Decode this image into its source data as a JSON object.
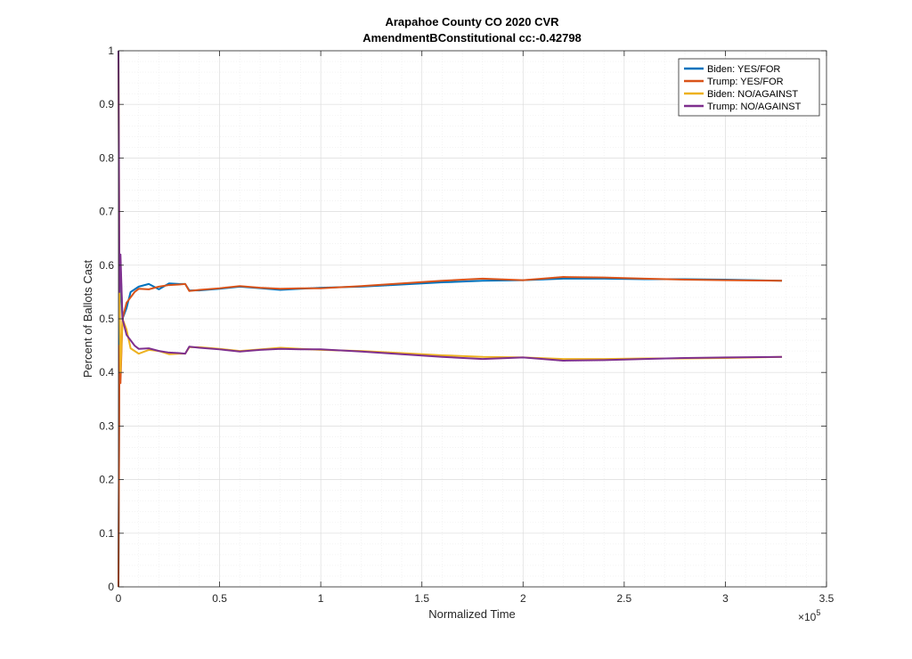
{
  "chart_data": {
    "type": "line",
    "title": "Arapahoe County CO 2020 CVR",
    "subtitle": "AmendmentBConstitutional cc:-0.42798",
    "xlabel": "Normalized Time",
    "ylabel": "Percent of Ballots Cast",
    "x_exponent_label": "×10",
    "x_exponent_power": "5",
    "xlim": [
      0,
      3.5
    ],
    "ylim": [
      0,
      1
    ],
    "x_ticks": [
      0,
      0.5,
      1,
      1.5,
      2,
      2.5,
      3,
      3.5
    ],
    "x_tick_labels": [
      "0",
      "0.5",
      "1",
      "1.5",
      "2",
      "2.5",
      "3",
      "3.5"
    ],
    "y_ticks": [
      0,
      0.1,
      0.2,
      0.3,
      0.4,
      0.5,
      0.6,
      0.7,
      0.8,
      0.9,
      1
    ],
    "y_tick_labels": [
      "0",
      "0.1",
      "0.2",
      "0.3",
      "0.4",
      "0.5",
      "0.6",
      "0.7",
      "0.8",
      "0.9",
      "1"
    ],
    "grid": true,
    "minor_grid": true,
    "legend_position": "top-right",
    "series": [
      {
        "name": "Biden: YES/FOR",
        "color": "#0072BD",
        "points": [
          [
            0,
            0.0
          ],
          [
            0.005,
            0.44
          ],
          [
            0.01,
            0.6
          ],
          [
            0.02,
            0.5
          ],
          [
            0.04,
            0.52
          ],
          [
            0.06,
            0.55
          ],
          [
            0.1,
            0.56
          ],
          [
            0.15,
            0.565
          ],
          [
            0.2,
            0.555
          ],
          [
            0.25,
            0.566
          ],
          [
            0.3,
            0.565
          ],
          [
            0.33,
            0.565
          ],
          [
            0.35,
            0.553
          ],
          [
            0.4,
            0.553
          ],
          [
            0.5,
            0.556
          ],
          [
            0.6,
            0.56
          ],
          [
            0.7,
            0.557
          ],
          [
            0.8,
            0.554
          ],
          [
            0.9,
            0.556
          ],
          [
            1.0,
            0.558
          ],
          [
            1.2,
            0.56
          ],
          [
            1.4,
            0.564
          ],
          [
            1.6,
            0.568
          ],
          [
            1.8,
            0.571
          ],
          [
            2.0,
            0.572
          ],
          [
            2.2,
            0.575
          ],
          [
            2.4,
            0.575
          ],
          [
            2.6,
            0.574
          ],
          [
            2.8,
            0.574
          ],
          [
            3.0,
            0.573
          ],
          [
            3.28,
            0.571
          ]
        ]
      },
      {
        "name": "Trump: YES/FOR",
        "color": "#D95319",
        "points": [
          [
            0,
            0.0
          ],
          [
            0.005,
            0.45
          ],
          [
            0.01,
            0.38
          ],
          [
            0.02,
            0.5
          ],
          [
            0.04,
            0.53
          ],
          [
            0.08,
            0.55
          ],
          [
            0.1,
            0.556
          ],
          [
            0.15,
            0.555
          ],
          [
            0.2,
            0.56
          ],
          [
            0.25,
            0.563
          ],
          [
            0.3,
            0.564
          ],
          [
            0.33,
            0.565
          ],
          [
            0.35,
            0.552
          ],
          [
            0.4,
            0.554
          ],
          [
            0.5,
            0.557
          ],
          [
            0.6,
            0.561
          ],
          [
            0.7,
            0.558
          ],
          [
            0.8,
            0.556
          ],
          [
            0.9,
            0.557
          ],
          [
            1.0,
            0.557
          ],
          [
            1.2,
            0.561
          ],
          [
            1.4,
            0.566
          ],
          [
            1.6,
            0.571
          ],
          [
            1.8,
            0.575
          ],
          [
            2.0,
            0.572
          ],
          [
            2.2,
            0.578
          ],
          [
            2.4,
            0.577
          ],
          [
            2.6,
            0.575
          ],
          [
            2.8,
            0.573
          ],
          [
            3.0,
            0.572
          ],
          [
            3.28,
            0.571
          ]
        ]
      },
      {
        "name": "Biden: NO/AGAINST",
        "color": "#EDB120",
        "points": [
          [
            0,
            1.0
          ],
          [
            0.005,
            0.56
          ],
          [
            0.01,
            0.4
          ],
          [
            0.02,
            0.5
          ],
          [
            0.04,
            0.48
          ],
          [
            0.06,
            0.445
          ],
          [
            0.1,
            0.435
          ],
          [
            0.15,
            0.442
          ],
          [
            0.2,
            0.44
          ],
          [
            0.25,
            0.434
          ],
          [
            0.3,
            0.435
          ],
          [
            0.33,
            0.435
          ],
          [
            0.35,
            0.447
          ],
          [
            0.4,
            0.447
          ],
          [
            0.5,
            0.444
          ],
          [
            0.6,
            0.44
          ],
          [
            0.7,
            0.443
          ],
          [
            0.8,
            0.446
          ],
          [
            0.9,
            0.444
          ],
          [
            1.0,
            0.442
          ],
          [
            1.2,
            0.44
          ],
          [
            1.4,
            0.436
          ],
          [
            1.6,
            0.432
          ],
          [
            1.8,
            0.429
          ],
          [
            2.0,
            0.428
          ],
          [
            2.2,
            0.425
          ],
          [
            2.4,
            0.425
          ],
          [
            2.6,
            0.426
          ],
          [
            2.8,
            0.426
          ],
          [
            3.0,
            0.427
          ],
          [
            3.28,
            0.429
          ]
        ]
      },
      {
        "name": "Trump: NO/AGAINST",
        "color": "#7E2F8E",
        "points": [
          [
            0,
            1.0
          ],
          [
            0.005,
            0.55
          ],
          [
            0.01,
            0.62
          ],
          [
            0.02,
            0.5
          ],
          [
            0.04,
            0.47
          ],
          [
            0.08,
            0.45
          ],
          [
            0.1,
            0.444
          ],
          [
            0.15,
            0.445
          ],
          [
            0.2,
            0.44
          ],
          [
            0.25,
            0.437
          ],
          [
            0.3,
            0.436
          ],
          [
            0.33,
            0.435
          ],
          [
            0.35,
            0.448
          ],
          [
            0.4,
            0.446
          ],
          [
            0.5,
            0.443
          ],
          [
            0.6,
            0.439
          ],
          [
            0.7,
            0.442
          ],
          [
            0.8,
            0.444
          ],
          [
            0.9,
            0.443
          ],
          [
            1.0,
            0.443
          ],
          [
            1.2,
            0.439
          ],
          [
            1.4,
            0.434
          ],
          [
            1.6,
            0.429
          ],
          [
            1.8,
            0.425
          ],
          [
            2.0,
            0.428
          ],
          [
            2.2,
            0.422
          ],
          [
            2.4,
            0.423
          ],
          [
            2.6,
            0.425
          ],
          [
            2.8,
            0.427
          ],
          [
            3.0,
            0.428
          ],
          [
            3.28,
            0.429
          ]
        ]
      }
    ]
  }
}
